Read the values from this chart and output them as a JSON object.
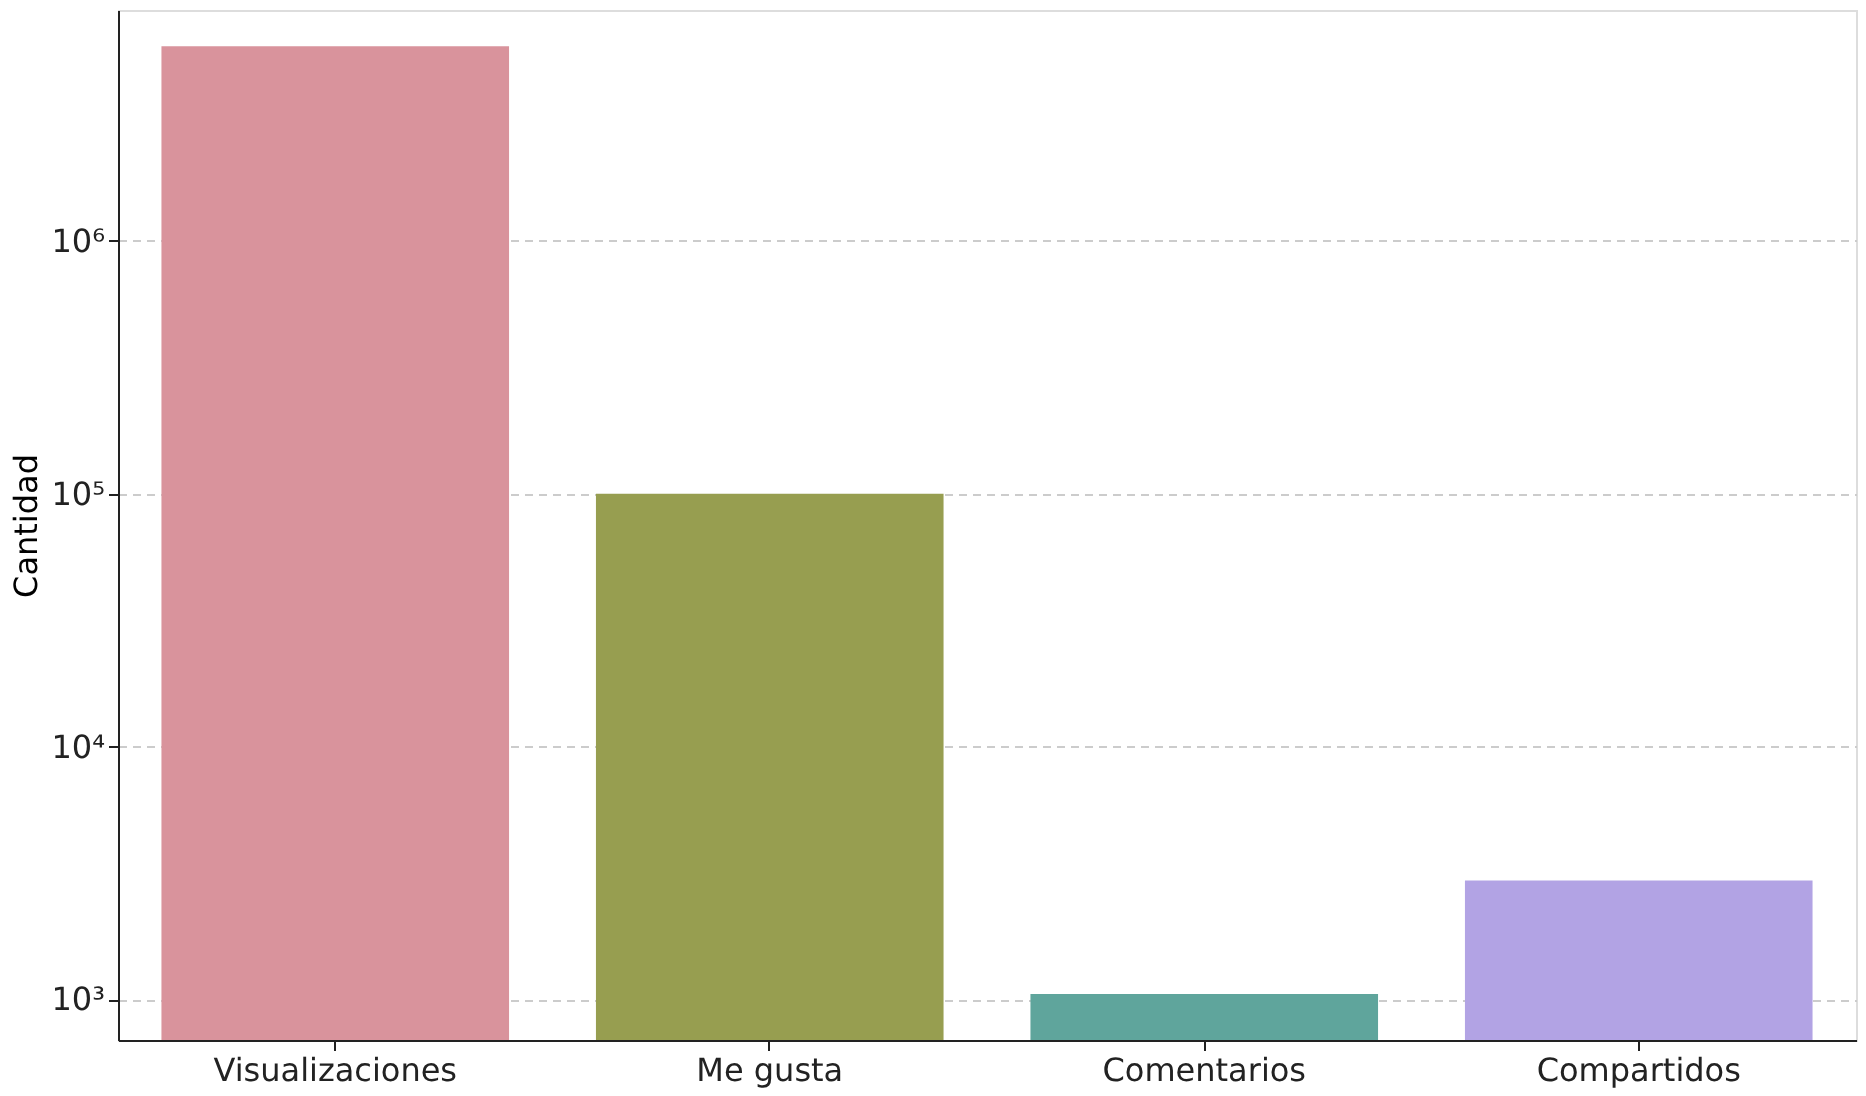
{
  "chart_data": {
    "type": "bar",
    "ylabel": "Cantidad",
    "categories": [
      "Visualizaciones",
      "Me gusta",
      "Comentarios",
      "Compartidos"
    ],
    "values": [
      5900000,
      100000,
      1050,
      2950
    ],
    "colors": [
      "#d9939c",
      "#979e50",
      "#5fa59c",
      "#b2a3e4"
    ],
    "log": "y",
    "ylim": [
      690,
      8200000
    ],
    "yticks": [
      {
        "value": 1000,
        "label": "10³"
      },
      {
        "value": 10000,
        "label": "10⁴"
      },
      {
        "value": 100000,
        "label": "10⁵"
      },
      {
        "value": 1000000,
        "label": "10⁶"
      }
    ],
    "grid": "y",
    "legend": false
  }
}
